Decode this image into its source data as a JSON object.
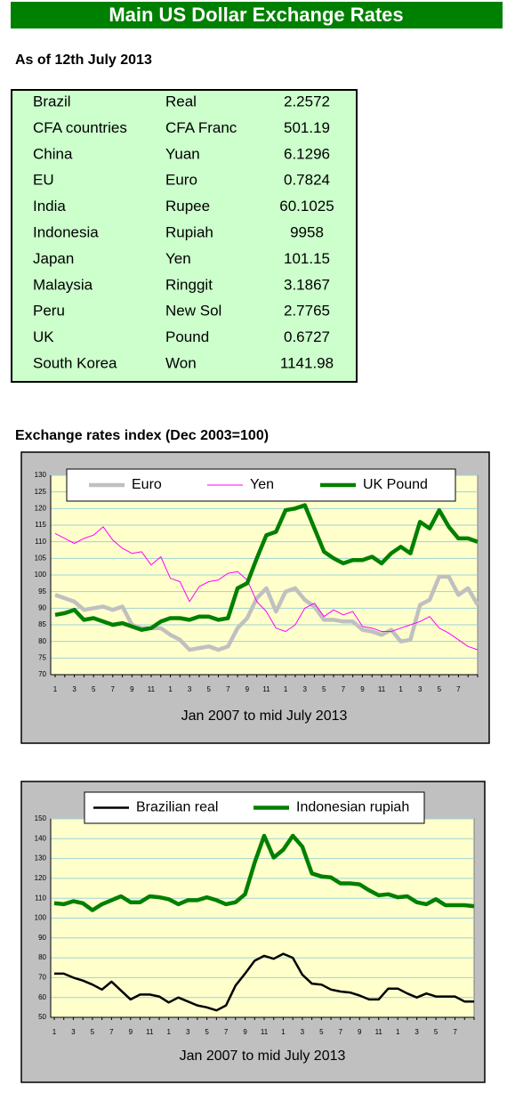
{
  "header": {
    "title": "Main US Dollar Exchange Rates",
    "date": "As of 12th July 2013"
  },
  "table": {
    "rows": [
      [
        "Brazil",
        "Real",
        "2.2572"
      ],
      [
        "CFA countries",
        "CFA Franc",
        "501.19"
      ],
      [
        "China",
        "Yuan",
        "6.1296"
      ],
      [
        "EU",
        "Euro",
        "0.7824"
      ],
      [
        "India",
        "Rupee",
        "60.1025"
      ],
      [
        "Indonesia",
        "Rupiah",
        "9958"
      ],
      [
        "Japan",
        "Yen",
        "101.15"
      ],
      [
        "Malaysia",
        "Ringgit",
        "3.1867"
      ],
      [
        "Peru",
        "New Sol",
        "2.7765"
      ],
      [
        "UK",
        "Pound",
        "0.6727"
      ],
      [
        "South Korea",
        "Won",
        "1141.98"
      ]
    ]
  },
  "section_title": "Exchange rates index (Dec 2003=100)",
  "chart_data": [
    {
      "type": "line",
      "x_label": "Jan 2007 to mid July 2013",
      "categories": [
        "1",
        null,
        "3",
        null,
        "5",
        null,
        "7",
        null,
        "9",
        null,
        "11",
        null,
        "1",
        null,
        "3",
        null,
        "5",
        null,
        "7",
        null,
        "9",
        null,
        "11",
        null,
        "1",
        null,
        "3",
        null,
        "5",
        null,
        "7",
        null,
        "9",
        null,
        "11",
        null,
        "1",
        null,
        "3",
        null,
        "5",
        null,
        "7",
        null,
        null
      ],
      "ylim": [
        70,
        130
      ],
      "yticks": [
        70,
        75,
        80,
        85,
        90,
        95,
        100,
        105,
        110,
        115,
        120,
        125,
        130
      ],
      "grid": true,
      "background": "#ffffcc",
      "grid_color": "#9fd3d3",
      "series": [
        {
          "name": "Euro",
          "color": "#c0c0c0",
          "values": [
            94,
            93,
            92,
            89.5,
            90,
            90.5,
            89.5,
            90.5,
            85,
            84,
            84,
            84,
            82,
            80.5,
            77.5,
            78,
            78.5,
            77.5,
            78.5,
            84,
            87,
            93,
            96,
            89,
            95,
            96,
            92.5,
            90.5,
            86.5,
            86.5,
            86,
            86,
            83.5,
            83,
            82,
            83.5,
            80,
            80.5,
            91,
            92.5,
            99.5,
            99.5,
            94,
            96,
            91
          ]
        },
        {
          "name": "Yen",
          "color": "#ff00ff",
          "values": [
            112.5,
            111,
            109.5,
            111,
            112,
            114.5,
            110.5,
            108,
            106.5,
            107,
            103,
            105.5,
            99,
            98,
            92,
            96.5,
            98,
            98.5,
            100.5,
            101,
            98.5,
            92,
            89,
            84,
            83,
            85,
            90,
            91.5,
            87.5,
            89.5,
            88,
            89,
            84.5,
            84,
            83,
            83,
            84,
            85,
            86,
            87.5,
            84,
            82.5,
            80.5,
            78.5,
            77.5
          ]
        },
        {
          "name": "UK Pound",
          "color": "#008000",
          "values": [
            88,
            88.5,
            89.5,
            86.5,
            87,
            86,
            85,
            85.5,
            84.5,
            83.5,
            84,
            86,
            87,
            87,
            86.5,
            87.5,
            87.5,
            86.5,
            87,
            96,
            97.5,
            105,
            112,
            113,
            119.5,
            120,
            121,
            114,
            107,
            105,
            103.5,
            104.5,
            104.5,
            105.5,
            103.5,
            106.5,
            108.5,
            106.5,
            116,
            114,
            119.5,
            114.5,
            111,
            111,
            110
          ]
        }
      ]
    },
    {
      "type": "line",
      "x_label": "Jan 2007 to mid July 2013",
      "categories": [
        "1",
        null,
        "3",
        null,
        "5",
        null,
        "7",
        null,
        "9",
        null,
        "11",
        null,
        "1",
        null,
        "3",
        null,
        "5",
        null,
        "7",
        null,
        "9",
        null,
        "11",
        null,
        "1",
        null,
        "3",
        null,
        "5",
        null,
        "7",
        null,
        "9",
        null,
        "11",
        null,
        "1",
        null,
        "3",
        null,
        "5",
        null,
        "7",
        null,
        null
      ],
      "ylim": [
        50,
        150
      ],
      "yticks": [
        50,
        60,
        70,
        80,
        90,
        100,
        110,
        120,
        130,
        140,
        150
      ],
      "grid": true,
      "background": "#ffffcc",
      "grid_color": "#9fd3d3",
      "series": [
        {
          "name": "Brazilian real",
          "color": "#000000",
          "values": [
            72,
            72,
            70,
            68.5,
            66.5,
            64,
            68,
            63.5,
            59,
            61.5,
            61.5,
            60.5,
            57.5,
            60,
            58,
            56,
            55,
            53.5,
            56,
            66,
            72,
            78.5,
            81,
            79.5,
            82,
            80,
            71.5,
            67,
            66.5,
            64,
            63,
            62.5,
            61,
            59,
            59,
            64.5,
            64.5,
            62,
            60,
            62,
            60.5,
            60.5,
            60.5,
            58,
            58
          ]
        },
        {
          "name": "Indonesian rupiah",
          "color": "#008000",
          "values": [
            107.5,
            107,
            108.5,
            107.5,
            104,
            107,
            109,
            111,
            108,
            108,
            111,
            110.5,
            109.5,
            107,
            109,
            109,
            110.5,
            109,
            107,
            108,
            112,
            128,
            141.5,
            130.5,
            134.5,
            141.5,
            136,
            122.5,
            121,
            120.5,
            117.5,
            117.5,
            117,
            114,
            111.5,
            112,
            110.5,
            111,
            108,
            107,
            109.5,
            106.5,
            106.5,
            106.5,
            106
          ]
        }
      ]
    }
  ]
}
